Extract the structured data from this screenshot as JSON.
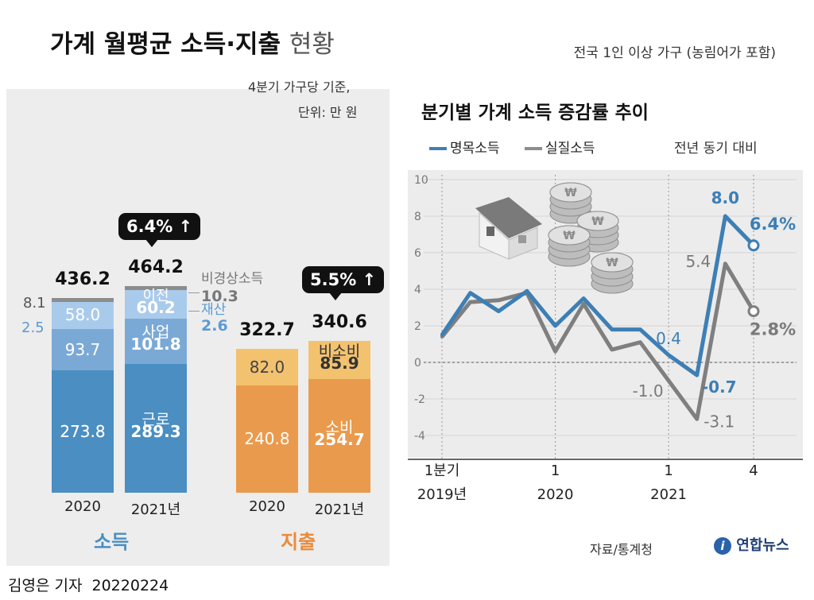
{
  "header": {
    "title": "가계 월평균 소득·지출",
    "title_suffix": "현황",
    "scope_note": "전국 1인 이상 가구 (농림어가 포함)"
  },
  "left": {
    "basis_line1": "4분기 가구당 기준,",
    "basis_line2": "단위: 만 원",
    "income_label": "소득",
    "spending_label": "지출",
    "x_labels": [
      "2020",
      "2021년",
      "2020",
      "2021년"
    ],
    "income_tip": "6.4%",
    "spending_tip": "5.5%"
  },
  "right": {
    "title": "분기별 가계 소득 증감률 추이",
    "legend_nominal": "명목소득",
    "legend_real": "실질소득",
    "yoy_note": "전년 동기 대비",
    "source": "자료/통계청",
    "logo": "연합뉴스"
  },
  "footer": {
    "byline": "김영은 기자",
    "date": "20220224"
  },
  "colors": {
    "income_dark": "#4a8ec2",
    "income_mid": "#7ba9d6",
    "income_light": "#a9cbeb",
    "gray": "#8c8c8c",
    "spend_dark": "#ea9a4c",
    "spend_light": "#f3c26f",
    "nominal_line": "#3d7fb5",
    "real_line": "#7f7f7f",
    "income_text": "#4a8ec2",
    "spend_text": "#ea8a3a"
  },
  "chart_data": [
    {
      "type": "bar",
      "stacked": true,
      "title": "가계 월평균 소득·지출 현황",
      "unit": "만 원",
      "groups": [
        {
          "name": "소득",
          "categories": [
            "2020",
            "2021년"
          ],
          "totals": [
            436.2,
            464.2
          ],
          "change": "6.4%",
          "series": [
            {
              "name": "근로",
              "values": [
                273.8,
                289.3
              ]
            },
            {
              "name": "사업",
              "values": [
                93.7,
                101.8
              ]
            },
            {
              "name": "재산",
              "values": [
                2.5,
                2.6
              ]
            },
            {
              "name": "이전",
              "values": [
                58.0,
                60.2
              ]
            },
            {
              "name": "비경상소득",
              "values": [
                8.1,
                10.3
              ]
            }
          ]
        },
        {
          "name": "지출",
          "categories": [
            "2020",
            "2021년"
          ],
          "totals": [
            322.7,
            340.6
          ],
          "change": "5.5%",
          "series": [
            {
              "name": "소비",
              "values": [
                240.8,
                254.7
              ]
            },
            {
              "name": "비소비",
              "values": [
                82.0,
                85.9
              ]
            }
          ]
        }
      ]
    },
    {
      "type": "line",
      "title": "분기별 가계 소득 증감률 추이",
      "ylabel": "",
      "ylim": [
        -4,
        10
      ],
      "yticks": [
        10,
        8,
        6,
        4,
        2,
        0,
        -2,
        -4
      ],
      "x": [
        "2019-Q1",
        "2019-Q2",
        "2019-Q3",
        "2019-Q4",
        "2020-Q1",
        "2020-Q2",
        "2020-Q3",
        "2020-Q4",
        "2021-Q1",
        "2021-Q2",
        "2021-Q3",
        "2021-Q4"
      ],
      "x_tick_labels": [
        {
          "index": 0,
          "line1": "1분기",
          "line2": "2019년"
        },
        {
          "index": 4,
          "line1": "1",
          "line2": "2020"
        },
        {
          "index": 8,
          "line1": "1",
          "line2": "2021"
        },
        {
          "index": 11,
          "line1": "4",
          "line2": ""
        }
      ],
      "series": [
        {
          "name": "명목소득",
          "values": [
            1.5,
            3.8,
            2.8,
            3.9,
            2.0,
            3.5,
            1.8,
            1.8,
            0.4,
            -0.7,
            8.0,
            6.4
          ]
        },
        {
          "name": "실질소득",
          "values": [
            1.4,
            3.3,
            3.4,
            3.8,
            0.6,
            3.2,
            0.7,
            1.1,
            -1.0,
            -3.1,
            5.4,
            2.8
          ]
        }
      ],
      "annotations": [
        {
          "series": "명목소득",
          "index": 8,
          "text": "0.4"
        },
        {
          "series": "명목소득",
          "index": 9,
          "text": "-0.7"
        },
        {
          "series": "명목소득",
          "index": 10,
          "text": "8.0"
        },
        {
          "series": "명목소득",
          "index": 11,
          "text": "6.4%"
        },
        {
          "series": "실질소득",
          "index": 8,
          "text": "-1.0"
        },
        {
          "series": "실질소득",
          "index": 9,
          "text": "-3.1"
        },
        {
          "series": "실질소득",
          "index": 10,
          "text": "5.4"
        },
        {
          "series": "실질소득",
          "index": 11,
          "text": "2.8%"
        }
      ]
    }
  ]
}
